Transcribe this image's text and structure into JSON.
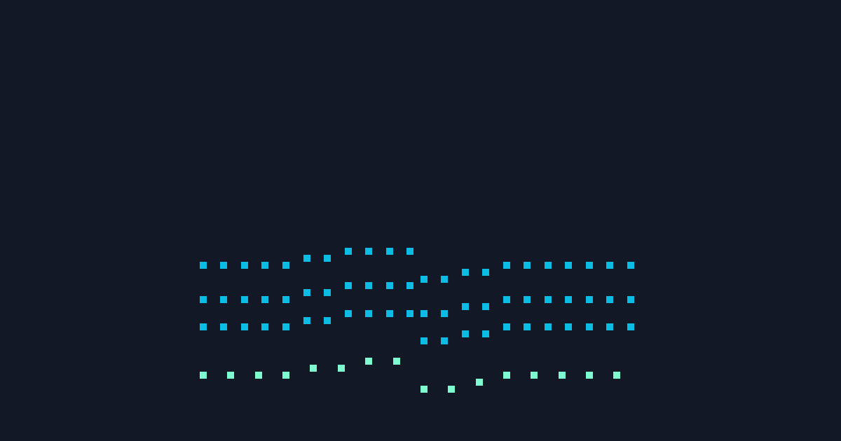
{
  "colors": {
    "background": "#121825",
    "primary_dots": "#0bbde4",
    "secondary_dots": "#7ffccf"
  }
}
